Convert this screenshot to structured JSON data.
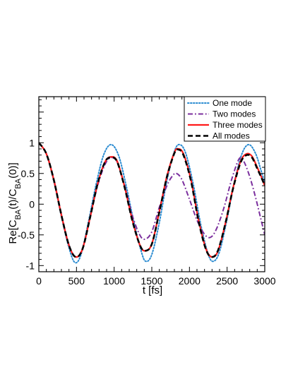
{
  "chart_data": {
    "type": "line",
    "title": "",
    "xlabel": "t [fs]",
    "ylabel": "Re[C_BA(t)/C_BA(0)]",
    "ylabel_parts": [
      "Re[C",
      "BA",
      "(t)/C",
      "BA",
      "(0)]"
    ],
    "xlim": [
      0,
      3000
    ],
    "ylim": [
      -1.1,
      1.75
    ],
    "xticks": [
      0,
      500,
      1000,
      1500,
      2000,
      2500,
      3000
    ],
    "yticks": [
      -1,
      -0.5,
      0,
      0.5,
      1
    ],
    "xtick_labels": [
      "0",
      "500",
      "1000",
      "1500",
      "2000",
      "2500",
      "3000"
    ],
    "ytick_labels": [
      "-1",
      "-0.5",
      "0",
      "0.5",
      "1"
    ],
    "grid": false,
    "legend_position": "top-right",
    "series": [
      {
        "name": "One mode",
        "color": "#2a8bd1",
        "dash": "dotted",
        "points": [
          [
            0,
            1
          ],
          [
            100,
            0.82
          ],
          [
            200,
            0.37
          ],
          [
            300,
            -0.2
          ],
          [
            400,
            -0.71
          ],
          [
            480,
            -0.95
          ],
          [
            560,
            -0.82
          ],
          [
            660,
            -0.28
          ],
          [
            760,
            0.32
          ],
          [
            860,
            0.8
          ],
          [
            960,
            0.97
          ],
          [
            1060,
            0.79
          ],
          [
            1160,
            0.3
          ],
          [
            1260,
            -0.28
          ],
          [
            1360,
            -0.77
          ],
          [
            1420,
            -0.93
          ],
          [
            1500,
            -0.82
          ],
          [
            1600,
            -0.3
          ],
          [
            1700,
            0.38
          ],
          [
            1800,
            0.86
          ],
          [
            1870,
            0.97
          ],
          [
            1950,
            0.83
          ],
          [
            2050,
            0.33
          ],
          [
            2150,
            -0.33
          ],
          [
            2250,
            -0.82
          ],
          [
            2320,
            -0.93
          ],
          [
            2400,
            -0.77
          ],
          [
            2500,
            -0.24
          ],
          [
            2600,
            0.38
          ],
          [
            2700,
            0.83
          ],
          [
            2790,
            0.97
          ],
          [
            2880,
            0.82
          ],
          [
            2950,
            0.55
          ],
          [
            3000,
            0.35
          ]
        ]
      },
      {
        "name": "Two modes",
        "color": "#7b2f9e",
        "dash": "dashdot",
        "points": [
          [
            0,
            1
          ],
          [
            100,
            0.82
          ],
          [
            200,
            0.4
          ],
          [
            300,
            -0.17
          ],
          [
            400,
            -0.66
          ],
          [
            490,
            -0.86
          ],
          [
            580,
            -0.72
          ],
          [
            680,
            -0.22
          ],
          [
            780,
            0.3
          ],
          [
            880,
            0.65
          ],
          [
            960,
            0.76
          ],
          [
            1040,
            0.68
          ],
          [
            1140,
            0.3
          ],
          [
            1240,
            -0.18
          ],
          [
            1340,
            -0.5
          ],
          [
            1410,
            -0.57
          ],
          [
            1500,
            -0.45
          ],
          [
            1600,
            -0.05
          ],
          [
            1700,
            0.3
          ],
          [
            1780,
            0.47
          ],
          [
            1830,
            0.5
          ],
          [
            1900,
            0.4
          ],
          [
            2000,
            0.08
          ],
          [
            2100,
            -0.26
          ],
          [
            2200,
            -0.49
          ],
          [
            2280,
            -0.54
          ],
          [
            2360,
            -0.4
          ],
          [
            2460,
            -0.05
          ],
          [
            2560,
            0.4
          ],
          [
            2660,
            0.74
          ],
          [
            2720,
            0.7
          ],
          [
            2800,
            0.45
          ],
          [
            2880,
            0.1
          ],
          [
            2950,
            -0.25
          ],
          [
            3000,
            -0.5
          ]
        ]
      },
      {
        "name": "Three modes",
        "color": "#ff1a1a",
        "dash": "solid",
        "points": [
          [
            0,
            1
          ],
          [
            100,
            0.82
          ],
          [
            200,
            0.39
          ],
          [
            300,
            -0.18
          ],
          [
            400,
            -0.67
          ],
          [
            490,
            -0.86
          ],
          [
            580,
            -0.73
          ],
          [
            680,
            -0.22
          ],
          [
            780,
            0.33
          ],
          [
            880,
            0.69
          ],
          [
            960,
            0.77
          ],
          [
            1040,
            0.7
          ],
          [
            1140,
            0.28
          ],
          [
            1240,
            -0.25
          ],
          [
            1340,
            -0.66
          ],
          [
            1410,
            -0.76
          ],
          [
            1500,
            -0.65
          ],
          [
            1600,
            -0.12
          ],
          [
            1700,
            0.45
          ],
          [
            1800,
            0.84
          ],
          [
            1850,
            0.9
          ],
          [
            1920,
            0.82
          ],
          [
            2020,
            0.4
          ],
          [
            2120,
            -0.25
          ],
          [
            2220,
            -0.73
          ],
          [
            2300,
            -0.86
          ],
          [
            2380,
            -0.76
          ],
          [
            2480,
            -0.3
          ],
          [
            2580,
            0.27
          ],
          [
            2680,
            0.7
          ],
          [
            2760,
            0.82
          ],
          [
            2830,
            0.78
          ],
          [
            2900,
            0.6
          ],
          [
            2960,
            0.43
          ],
          [
            3000,
            0.3
          ]
        ]
      },
      {
        "name": "All modes",
        "color": "#000000",
        "dash": "dashed",
        "points": [
          [
            0,
            1
          ],
          [
            100,
            0.82
          ],
          [
            200,
            0.39
          ],
          [
            300,
            -0.18
          ],
          [
            400,
            -0.67
          ],
          [
            490,
            -0.86
          ],
          [
            580,
            -0.73
          ],
          [
            680,
            -0.22
          ],
          [
            780,
            0.33
          ],
          [
            880,
            0.69
          ],
          [
            960,
            0.76
          ],
          [
            1040,
            0.69
          ],
          [
            1140,
            0.27
          ],
          [
            1240,
            -0.26
          ],
          [
            1340,
            -0.66
          ],
          [
            1410,
            -0.76
          ],
          [
            1500,
            -0.65
          ],
          [
            1600,
            -0.13
          ],
          [
            1700,
            0.44
          ],
          [
            1800,
            0.83
          ],
          [
            1850,
            0.89
          ],
          [
            1920,
            0.8
          ],
          [
            2020,
            0.38
          ],
          [
            2120,
            -0.27
          ],
          [
            2220,
            -0.74
          ],
          [
            2300,
            -0.86
          ],
          [
            2380,
            -0.75
          ],
          [
            2480,
            -0.3
          ],
          [
            2580,
            0.26
          ],
          [
            2680,
            0.68
          ],
          [
            2760,
            0.8
          ],
          [
            2830,
            0.76
          ],
          [
            2900,
            0.58
          ],
          [
            2960,
            0.42
          ],
          [
            3000,
            0.3
          ]
        ]
      }
    ]
  }
}
